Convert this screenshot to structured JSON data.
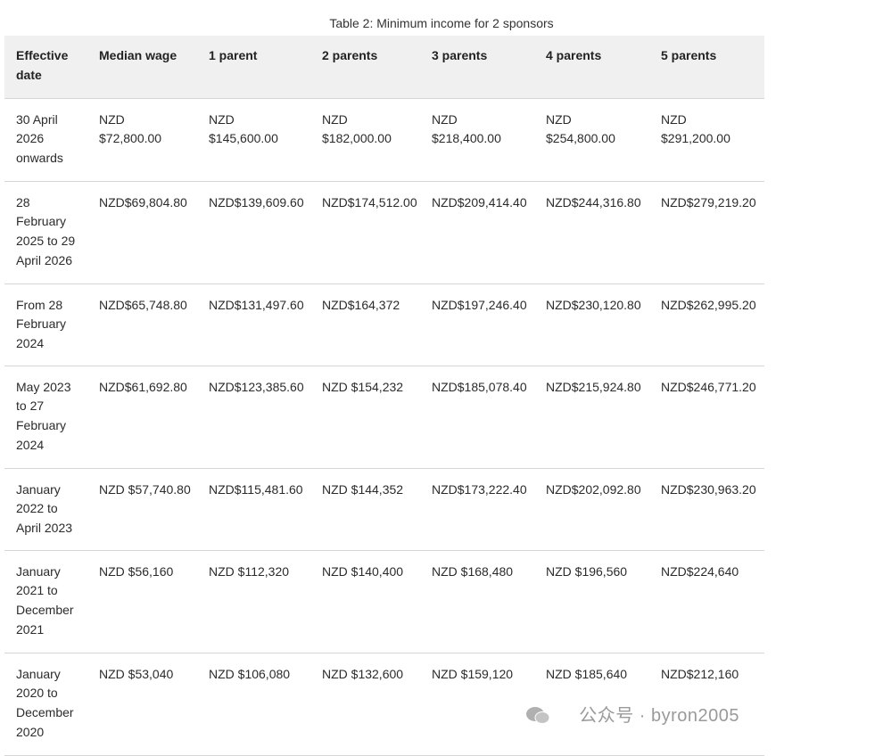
{
  "table": {
    "caption": "Table 2: Minimum income for 2 sponsors",
    "headers": [
      "Effective\ndate",
      "Median wage",
      "1 parent",
      "2 parents",
      "3 parents",
      "4 parents",
      "5 parents"
    ],
    "rows": [
      [
        "30 April\n2026\nonwards",
        "NZD\n$72,800.00",
        "NZD\n$145,600.00",
        "NZD\n$182,000.00",
        "NZD\n$218,400.00",
        "NZD\n$254,800.00",
        "NZD\n$291,200.00"
      ],
      [
        "28\nFebruary\n2025 to 29\nApril 2026",
        "NZD$69,804.80",
        "NZD$139,609.60",
        "NZD$174,512.00",
        "NZD$209,414.40",
        "NZD$244,316.80",
        "NZD$279,219.20"
      ],
      [
        "From 28\nFebruary\n2024",
        "NZD$65,748.80",
        "NZD$131,497.60",
        "NZD$164,372",
        "NZD$197,246.40",
        "NZD$230,120.80",
        "NZD$262,995.20"
      ],
      [
        "May 2023\nto 27\nFebruary\n2024",
        "NZD$61,692.80",
        "NZD$123,385.60",
        "NZD $154,232",
        "NZD$185,078.40",
        "NZD$215,924.80",
        "NZD$246,771.20"
      ],
      [
        "January\n2022 to\nApril 2023",
        "NZD $57,740.80",
        "NZD$115,481.60",
        "NZD $144,352",
        "NZD$173,222.40",
        "NZD$202,092.80",
        "NZD$230,963.20"
      ],
      [
        "January\n2021 to\nDecember\n2021",
        "NZD $56,160",
        "NZD $112,320",
        "NZD $140,400",
        "NZD $168,480",
        "NZD $196,560",
        "NZD$224,640"
      ],
      [
        "January\n2020 to\nDecember\n2020",
        "NZD $53,040",
        "NZD $106,080",
        "NZD $132,600",
        "NZD $159,120",
        "NZD $185,640",
        "NZD$212,160"
      ]
    ]
  },
  "watermark": "公众号 · byron2005"
}
